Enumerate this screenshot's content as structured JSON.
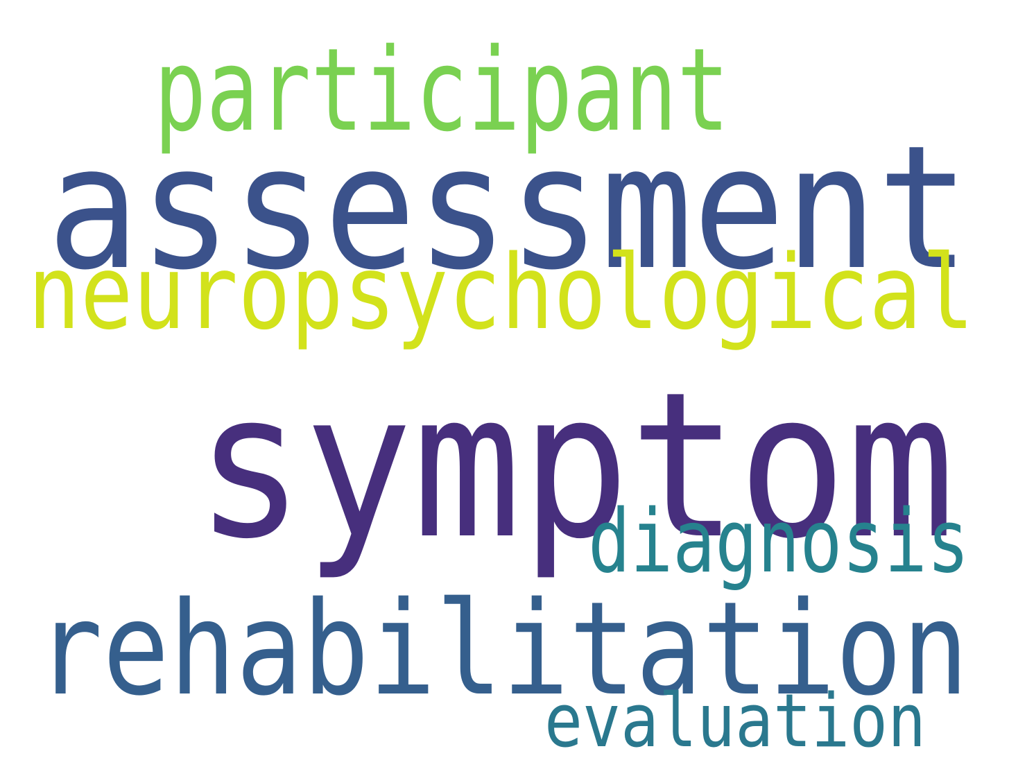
{
  "words": [
    {
      "id": "participant",
      "text": "participant",
      "color": "#7ad151"
    },
    {
      "id": "assessment",
      "text": "assessment",
      "color": "#3b528b"
    },
    {
      "id": "neuropsychological",
      "text": "neuropsychological",
      "color": "#d2e21b"
    },
    {
      "id": "symptom",
      "text": "symptom",
      "color": "#472f7d"
    },
    {
      "id": "diagnosis",
      "text": "diagnosis",
      "color": "#26828e"
    },
    {
      "id": "rehabilitation",
      "text": "rehabilitation",
      "color": "#355f8d"
    },
    {
      "id": "evaluation",
      "text": "evaluation",
      "color": "#2a788e"
    }
  ]
}
